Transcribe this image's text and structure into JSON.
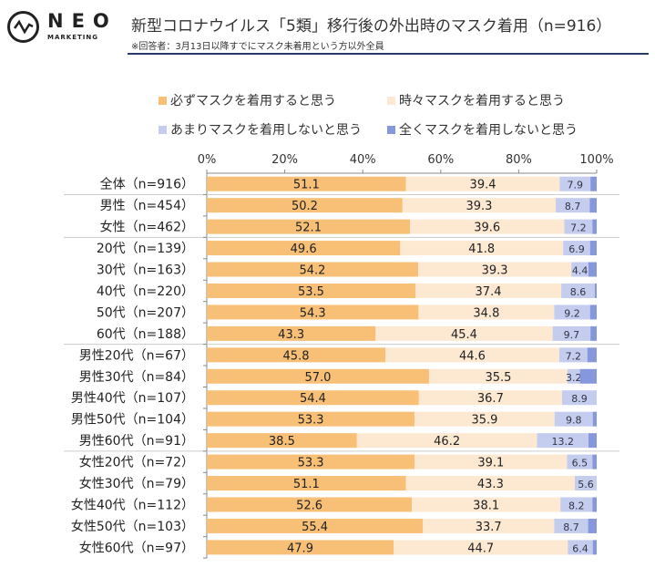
{
  "header": {
    "logo_text": "NEO",
    "logo_sub": "MARKETING",
    "title": "新型コロナウイルス「5類」移行後の外出時のマスク着用（n=916）",
    "subtitle": "※回答者：3月13日以降すでにマスク未着用という方以外全員"
  },
  "chart_data": {
    "type": "bar",
    "orientation": "horizontal",
    "stacked": true,
    "xlim": [
      0,
      100
    ],
    "xticks": [
      "0%",
      "20%",
      "40%",
      "60%",
      "80%",
      "100%"
    ],
    "legend_position": "top",
    "categories": [
      "全体（n=916）",
      "男性（n=454）",
      "女性（n=462）",
      "20代（n=139）",
      "30代（n=163）",
      "40代（n=220）",
      "50代（n=207）",
      "60代（n=188）",
      "男性20代（n=67）",
      "男性30代（n=84）",
      "男性40代（n=107）",
      "男性50代（n=104）",
      "男性60代（n=91）",
      "女性20代（n=72）",
      "女性30代（n=79）",
      "女性40代（n=112）",
      "女性50代（n=103）",
      "女性60代（n=97）"
    ],
    "series": [
      {
        "name": "必ずマスクを着用すると思う",
        "color": "#f8c077",
        "values": [
          51.1,
          50.2,
          52.1,
          49.6,
          54.2,
          53.5,
          54.3,
          43.3,
          45.8,
          57.0,
          54.4,
          53.3,
          38.5,
          53.3,
          51.1,
          52.6,
          55.4,
          47.9
        ]
      },
      {
        "name": "時々マスクを着用すると思う",
        "color": "#fde9d2",
        "values": [
          39.4,
          39.3,
          39.6,
          41.8,
          39.3,
          37.4,
          34.8,
          45.4,
          44.6,
          35.5,
          36.7,
          35.9,
          46.2,
          39.1,
          43.3,
          38.1,
          33.7,
          44.7
        ]
      },
      {
        "name": "あまりマスクを着用しないと思う",
        "color": "#c5cdee",
        "values": [
          7.9,
          8.7,
          7.2,
          6.9,
          4.4,
          8.6,
          9.2,
          9.7,
          7.2,
          3.2,
          8.9,
          9.8,
          13.2,
          6.5,
          5.6,
          8.2,
          8.7,
          6.4
        ]
      },
      {
        "name": "全くマスクを着用しないと思う",
        "color": "#8797dc",
        "values": [
          1.6,
          1.8,
          1.1,
          1.7,
          2.1,
          0.5,
          1.7,
          1.6,
          2.4,
          4.3,
          0.0,
          1.0,
          2.1,
          1.1,
          0.0,
          1.1,
          2.2,
          1.0
        ]
      }
    ],
    "labeled_series": [
      0,
      1,
      2
    ]
  }
}
